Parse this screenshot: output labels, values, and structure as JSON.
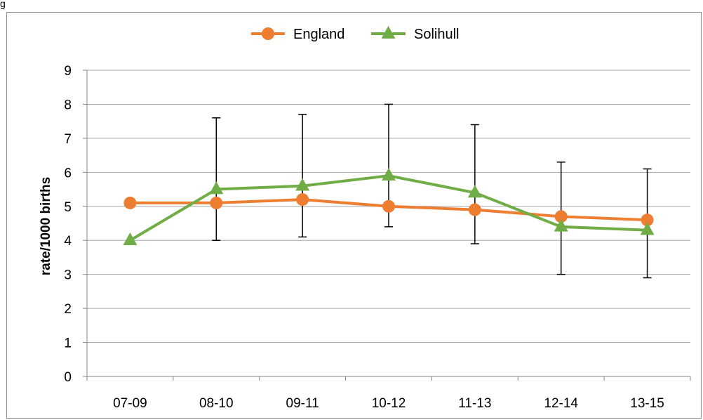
{
  "page": {
    "corner_label": "g"
  },
  "colors": {
    "england": "#ed7d31",
    "solihull": "#70ad47",
    "gridline": "#a6a6a6",
    "axis": "#868686",
    "error_bar": "#000000"
  },
  "chart_data": {
    "type": "line",
    "title": "",
    "xlabel": "",
    "ylabel": "rate/1000 births",
    "ylim": [
      0,
      9
    ],
    "y_ticks": [
      0,
      1,
      2,
      3,
      4,
      5,
      6,
      7,
      8,
      9
    ],
    "grid": true,
    "legend_position": "top-center",
    "categories": [
      "07-09",
      "08-10",
      "09-11",
      "10-12",
      "11-13",
      "12-14",
      "13-15"
    ],
    "series": [
      {
        "name": "England",
        "marker": "circle",
        "color": "#ed7d31",
        "values": [
          5.1,
          5.1,
          5.2,
          5.0,
          4.9,
          4.7,
          4.6
        ]
      },
      {
        "name": "Solihull",
        "marker": "triangle",
        "color": "#70ad47",
        "values": [
          4.0,
          5.5,
          5.6,
          5.9,
          5.4,
          4.4,
          4.3
        ],
        "error_low": [
          null,
          4.0,
          4.1,
          4.4,
          3.9,
          3.0,
          2.9
        ],
        "error_high": [
          null,
          7.6,
          7.7,
          8.0,
          7.4,
          6.3,
          6.1
        ]
      }
    ]
  }
}
